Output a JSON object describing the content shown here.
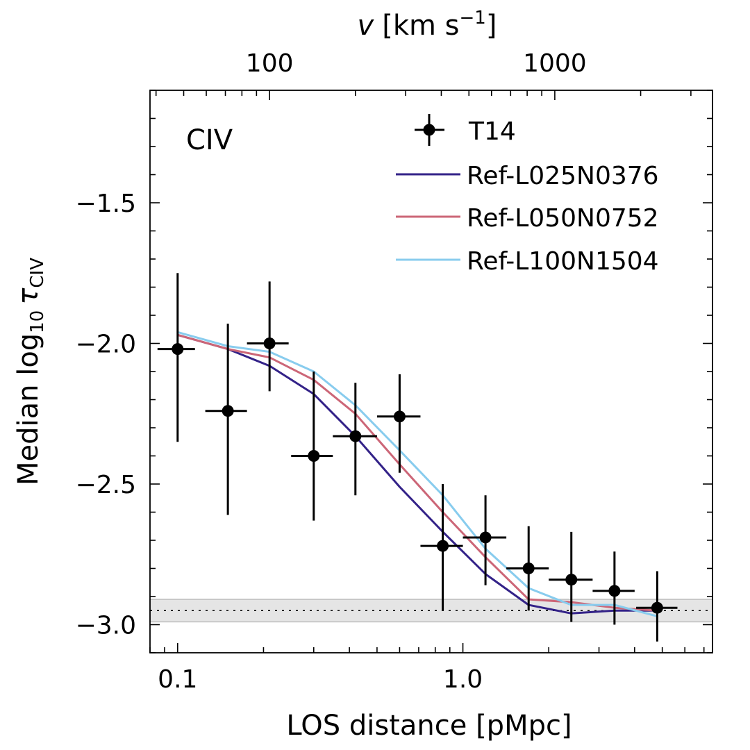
{
  "chart_data": {
    "type": "scatter",
    "annotation": "CIV",
    "xlabel": "LOS distance [pMpc]",
    "ylabel_prefix": "Median log",
    "ylabel_sub": "10",
    "ylabel_tau": "τ",
    "ylabel_tau_sub": "CIV",
    "top_xlabel_var": "v",
    "top_xlabel_unit": "[km s",
    "top_xlabel_exp": "−1",
    "top_xlabel_close": "]",
    "xscale": "log",
    "xlim": [
      0.08,
      7.5
    ],
    "ylim": [
      -3.1,
      -1.1
    ],
    "x_ticks": [
      0.1,
      1.0
    ],
    "x_tick_labels": [
      "0.1",
      "1.0"
    ],
    "y_ticks": [
      -1.5,
      -2.0,
      -2.5,
      -3.0
    ],
    "y_tick_labels": [
      "−1.5",
      "−2.0",
      "−2.5",
      "−3.0"
    ],
    "top_ticks_pmpc": [
      0.21,
      2.1
    ],
    "top_tick_labels": [
      "100",
      "1000"
    ],
    "floor_band": {
      "center": -2.95,
      "low": -2.99,
      "high": -2.91
    },
    "observations": {
      "name": "T14",
      "x": [
        0.1,
        0.15,
        0.21,
        0.3,
        0.42,
        0.6,
        0.85,
        1.2,
        1.7,
        2.4,
        3.4,
        4.8
      ],
      "xlo": [
        0.085,
        0.125,
        0.175,
        0.25,
        0.35,
        0.5,
        0.71,
        1.0,
        1.42,
        2.0,
        2.85,
        4.05
      ],
      "xhi": [
        0.115,
        0.175,
        0.245,
        0.35,
        0.5,
        0.71,
        1.0,
        1.42,
        2.0,
        2.85,
        4.0,
        5.65
      ],
      "y": [
        -2.02,
        -2.24,
        -2.0,
        -2.4,
        -2.33,
        -2.26,
        -2.72,
        -2.69,
        -2.8,
        -2.84,
        -2.88,
        -2.94
      ],
      "ylo": [
        -2.35,
        -2.61,
        -2.17,
        -2.63,
        -2.54,
        -2.46,
        -2.95,
        -2.86,
        -2.95,
        -2.99,
        -3.0,
        -3.06
      ],
      "yhi": [
        -1.75,
        -1.93,
        -1.78,
        -2.1,
        -2.14,
        -2.11,
        -2.5,
        -2.54,
        -2.65,
        -2.67,
        -2.74,
        -2.81
      ],
      "color": "#000000"
    },
    "series": [
      {
        "name": "Ref-L025N0376",
        "color": "#332288",
        "x": [
          0.1,
          0.15,
          0.21,
          0.3,
          0.42,
          0.6,
          0.85,
          1.2,
          1.7,
          2.4,
          3.4,
          4.8
        ],
        "values": [
          -1.97,
          -2.02,
          -2.08,
          -2.18,
          -2.33,
          -2.51,
          -2.67,
          -2.82,
          -2.93,
          -2.96,
          -2.95,
          -2.95
        ]
      },
      {
        "name": "Ref-L050N0752",
        "color": "#CC6677",
        "x": [
          0.1,
          0.15,
          0.21,
          0.3,
          0.42,
          0.6,
          0.85,
          1.2,
          1.7,
          2.4,
          3.4,
          4.8
        ],
        "values": [
          -1.97,
          -2.02,
          -2.05,
          -2.13,
          -2.25,
          -2.43,
          -2.6,
          -2.76,
          -2.91,
          -2.92,
          -2.94,
          -2.95
        ]
      },
      {
        "name": "Ref-L100N1504",
        "color": "#88CCEE",
        "x": [
          0.1,
          0.15,
          0.21,
          0.3,
          0.42,
          0.6,
          0.85,
          1.2,
          1.7,
          2.4,
          3.4,
          4.8
        ],
        "values": [
          -1.96,
          -2.01,
          -2.03,
          -2.1,
          -2.22,
          -2.38,
          -2.54,
          -2.73,
          -2.87,
          -2.93,
          -2.93,
          -2.97
        ]
      }
    ],
    "legend_position": "top-right"
  }
}
